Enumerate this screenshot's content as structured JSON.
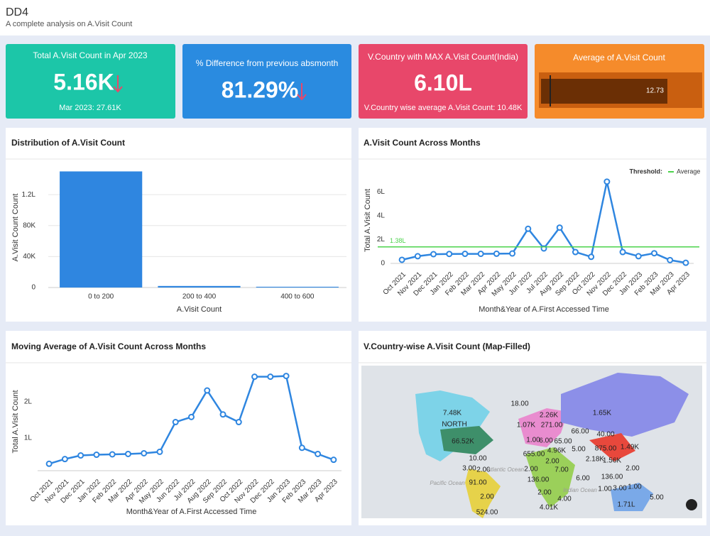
{
  "header": {
    "title": "DD4",
    "subtitle": "A complete analysis on A.Visit Count"
  },
  "kpis": [
    {
      "title": "Total A.Visit Count in Apr 2023",
      "value": "5.16K",
      "sub": "Mar 2023: 27.61K"
    },
    {
      "title": "% Difference from previous absmonth",
      "value": "81.29%"
    },
    {
      "title": "V.Country with MAX A.Visit Count(India)",
      "value": "6.10L",
      "sub": "V.Country wise average A.Visit Count: 10.48K"
    },
    {
      "title": "Average of A.Visit Count",
      "value": "12.73"
    }
  ],
  "chart_data": [
    {
      "type": "bar",
      "title": "Distribution of A.Visit Count",
      "x_label": "A.Visit Count",
      "y_label": "A.Visit Count Count",
      "categories": [
        "0 to 200",
        "200 to 400",
        "400 to 600"
      ],
      "values": [
        150000,
        2000,
        1000
      ],
      "color": "#2f86e0",
      "ylim": [
        0,
        155000
      ],
      "yticks": [
        0,
        {
          "value": 40000,
          "label": "40K"
        },
        {
          "value": 80000,
          "label": "80K"
        },
        {
          "value": 120000,
          "label": "1.2L"
        }
      ]
    },
    {
      "type": "line",
      "title": "A.Visit Count Across Months",
      "x_label": "Month&Year of A.First Accessed Time",
      "y_label": "Total A.Visit Count",
      "categories": [
        "Oct 2021",
        "Nov 2021",
        "Dec 2021",
        "Jan 2022",
        "Feb 2022",
        "Mar 2022",
        "Apr 2022",
        "May 2022",
        "Jun 2022",
        "Jul 2022",
        "Aug 2022",
        "Sep 2022",
        "Oct 2022",
        "Nov 2022",
        "Dec 2022",
        "Jan 2023",
        "Feb 2023",
        "Mar 2023",
        "Apr 2023"
      ],
      "values": [
        30000,
        60000,
        77000,
        79000,
        80000,
        80000,
        81000,
        83000,
        290000,
        125000,
        300000,
        95000,
        55000,
        685000,
        95000,
        60000,
        85000,
        27610,
        5160
      ],
      "color": "#2f86e0",
      "ylim": [
        0,
        720000
      ],
      "yticks": [
        0,
        {
          "value": 200000,
          "label": "2L"
        },
        {
          "value": 400000,
          "label": "4L"
        },
        {
          "value": 600000,
          "label": "6L"
        }
      ],
      "threshold": {
        "legend_title": "Threshold:",
        "name": "Average",
        "value": 138000,
        "label": "1.38L",
        "color": "#4cd34c"
      }
    },
    {
      "type": "line",
      "title": "Moving Average of A.Visit Count Across Months",
      "x_label": "Month&Year of A.First Accessed Time",
      "y_label": "Total A.Visit Count",
      "categories": [
        "Oct 2021",
        "Nov 2021",
        "Dec 2021",
        "Jan 2022",
        "Feb 2022",
        "Mar 2022",
        "Apr 2022",
        "May 2022",
        "Jun 2022",
        "Jul 2022",
        "Aug 2022",
        "Sep 2022",
        "Oct 2022",
        "Nov 2022",
        "Dec 2022",
        "Jan 2023",
        "Feb 2023",
        "Mar 2023",
        "Apr 2023"
      ],
      "values": [
        29000,
        42000,
        52000,
        54000,
        55000,
        56000,
        58000,
        62000,
        144000,
        158000,
        231000,
        165000,
        144000,
        269000,
        269000,
        271000,
        73000,
        56000,
        40000
      ],
      "color": "#2f86e0",
      "ylim": [
        10000,
        280000
      ],
      "yticks": [
        {
          "value": 100000,
          "label": "1L"
        },
        {
          "value": 200000,
          "label": "2L"
        }
      ]
    }
  ],
  "map": {
    "title": "V.Country-wise A.Visit Count (Map-Filled)",
    "labels": [
      "7.48K",
      "NORTH",
      "66.52K",
      "10.00",
      "3.00",
      "2.00",
      "Atlantic Ocean",
      "91.00",
      "Pacific Ocean",
      "2.00",
      "524.00",
      "18.00",
      "2.26K",
      "1.07K",
      "271.00",
      "1.00",
      "6.00",
      "65.00",
      "66.00",
      "1.65K",
      "40.00",
      "655.00",
      "4.96K",
      "5.00",
      "875.00",
      "1.49K",
      "2.18K",
      "1.56K",
      "2.00",
      "2.00",
      "7.00",
      "136.00",
      "6.00",
      "136.00",
      "2.00",
      "Indian Ocean",
      "2.00",
      "4.00",
      "4.01K",
      "1.00",
      "3.00",
      "1.00",
      "5.00",
      "1.71L"
    ]
  }
}
